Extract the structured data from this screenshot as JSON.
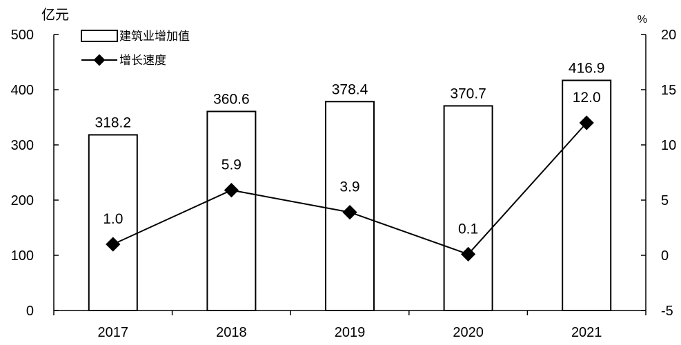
{
  "chart_data": {
    "type": "bar",
    "categories": [
      "2017",
      "2018",
      "2019",
      "2020",
      "2021"
    ],
    "series": [
      {
        "name": "建筑业增加值",
        "type": "bar",
        "axis": "left",
        "values": [
          318.2,
          360.6,
          378.4,
          370.7,
          416.9
        ],
        "labels": [
          "318.2",
          "360.6",
          "378.4",
          "370.7",
          "416.9"
        ]
      },
      {
        "name": "增长速度",
        "type": "line",
        "axis": "right",
        "values": [
          1.0,
          5.9,
          3.9,
          0.1,
          12.0
        ],
        "labels": [
          "1.0",
          "5.9",
          "3.9",
          "0.1",
          "12.0"
        ]
      }
    ],
    "y_left": {
      "unit": "亿元",
      "ylim": [
        0,
        500
      ],
      "ticks": [
        "0",
        "100",
        "200",
        "300",
        "400",
        "500"
      ]
    },
    "y_right": {
      "unit": "%",
      "ylim": [
        -5,
        20
      ],
      "ticks": [
        "-5",
        "0",
        "5",
        "10",
        "15",
        "20"
      ]
    },
    "legend_position": "top-left",
    "grid": false,
    "colors": {
      "bar_fill": "#ffffff",
      "stroke": "#000000"
    }
  }
}
